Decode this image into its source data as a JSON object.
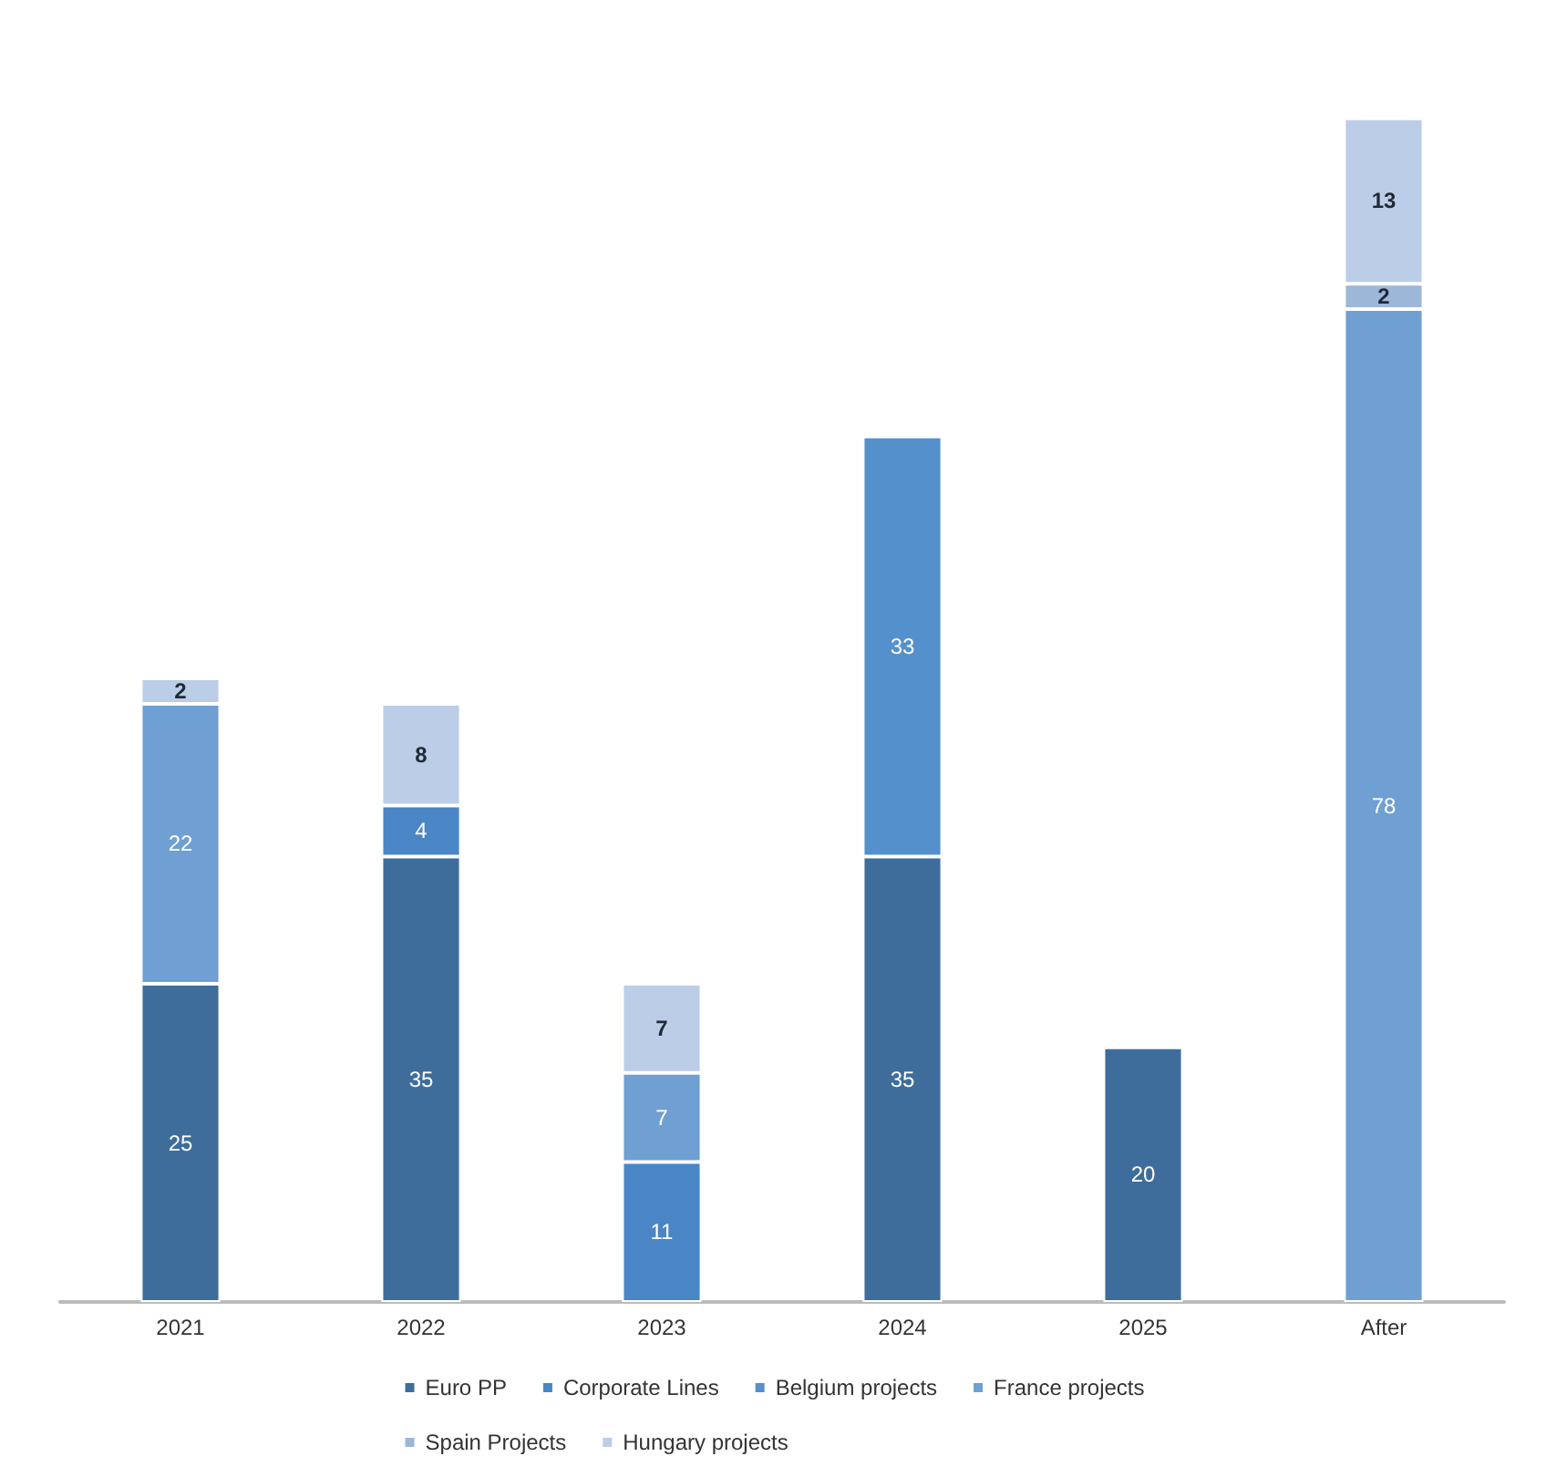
{
  "chart_data": {
    "type": "bar",
    "stacked": true,
    "data_labels": true,
    "legend": "bottom",
    "categories": [
      "2021",
      "2022",
      "2023",
      "2024",
      "2025",
      "After"
    ],
    "series": [
      {
        "name": "Euro PP",
        "color": "#3e6d9c",
        "values": [
          25,
          35,
          null,
          35,
          20,
          null
        ]
      },
      {
        "name": "Corporate Lines",
        "color": "#4a86c5",
        "values": [
          null,
          4,
          11,
          null,
          null,
          null
        ]
      },
      {
        "name": "Belgium projects",
        "color": "#5490cc",
        "values": [
          null,
          null,
          null,
          33,
          null,
          null
        ]
      },
      {
        "name": "France projects",
        "color": "#6f9fd3",
        "values": [
          22,
          null,
          7,
          null,
          null,
          78
        ]
      },
      {
        "name": "Spain Projects",
        "color": "#9db7d8",
        "values": [
          null,
          null,
          null,
          null,
          null,
          2
        ]
      },
      {
        "name": "Hungary projects",
        "color": "#bccde8",
        "values": [
          2,
          8,
          7,
          null,
          null,
          13
        ]
      }
    ]
  }
}
